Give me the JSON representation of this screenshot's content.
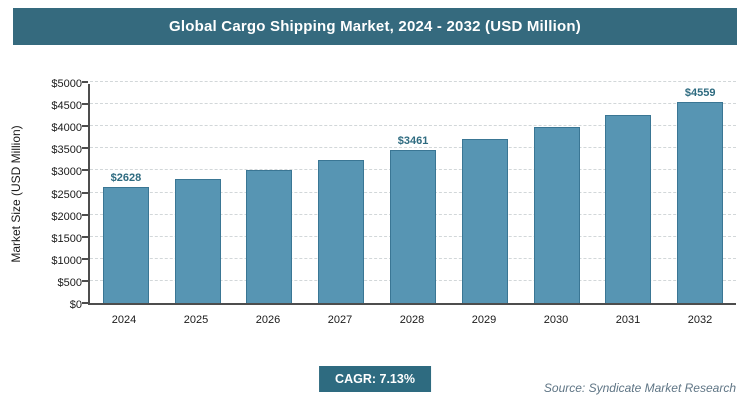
{
  "header": {
    "title": "Global Cargo Shipping Market, 2024 - 2032 (USD Million)"
  },
  "chart_data": {
    "type": "bar",
    "title": "Global Cargo Shipping Market, 2024 - 2032 (USD Million)",
    "categories": [
      "2024",
      "2025",
      "2026",
      "2027",
      "2028",
      "2029",
      "2030",
      "2031",
      "2032"
    ],
    "values": [
      2628,
      2815,
      3016,
      3231,
      3461,
      3708,
      3972,
      4256,
      4559
    ],
    "bar_labels": [
      "$2628",
      null,
      null,
      null,
      "$3461",
      null,
      null,
      null,
      "$4559"
    ],
    "xlabel": "",
    "ylabel": "Market Size (USD Million)",
    "ylim": [
      0,
      5000
    ],
    "ytick_step": 500,
    "ytick_labels": [
      "$0",
      "$500",
      "$1000",
      "$1500",
      "$2000",
      "$2500",
      "$3000",
      "$3500",
      "$4000",
      "$4500",
      "$5000"
    ],
    "grid": "horizontal-dashed",
    "legend": "none"
  },
  "footer": {
    "cagr_label": "CAGR: 7.13%",
    "source": "Source: Syndicate Market Research"
  },
  "colors": {
    "title_bar_bg": "#356a7e",
    "bar_fill": "#5795b3",
    "bar_border": "#3a7694",
    "badge_bg": "#2e6b80",
    "bar_value_label": "#2e6b80",
    "source_text": "#5f7585"
  }
}
